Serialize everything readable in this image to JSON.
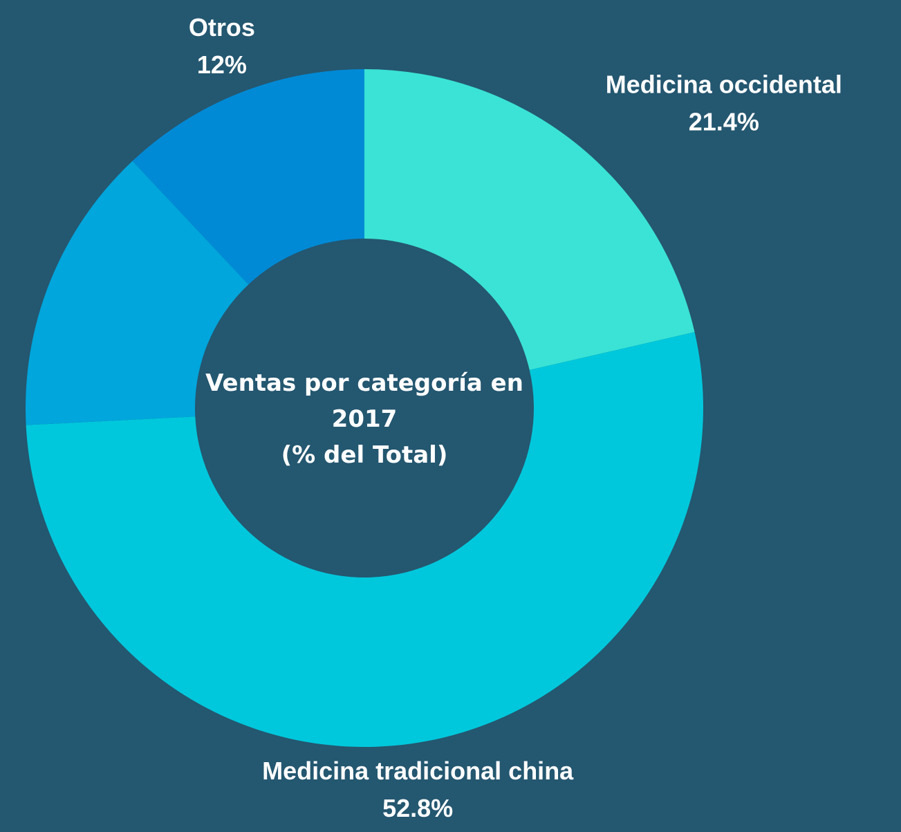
{
  "chart_data": {
    "type": "donut",
    "title": "Ventas por categoría en 2017",
    "subtitle": "(% del Total)",
    "categories": [
      "Medicina occidental",
      "Medicina tradicional china",
      null,
      "Otros"
    ],
    "values": [
      21.4,
      52.8,
      13.8,
      12
    ],
    "value_labels": [
      "21.4%",
      "52.8%",
      null,
      "12%"
    ],
    "colors": [
      "#3ae3d5",
      "#00c8dc",
      "#00a6dc",
      "#008ad6"
    ]
  }
}
